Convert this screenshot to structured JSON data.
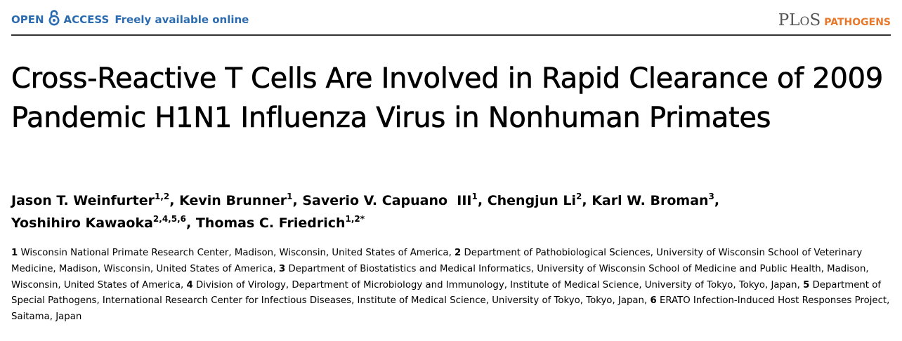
{
  "header": {
    "open": "OPEN",
    "access": "ACCESS",
    "freely": "Freely available online",
    "journal_plos": "PLOS",
    "journal_name": "PATHOGENS",
    "accent": "#2b6cb0",
    "journal_color": "#e8792b"
  },
  "title": "Cross-Reactive T Cells Are Involved in Rapid Clearance of 2009 Pandemic H1N1 Influenza Virus in Nonhuman Primates",
  "authors": [
    {
      "name": "Jason T. Weinfurter",
      "sup": "1,2",
      "sep": ", "
    },
    {
      "name": "Kevin Brunner",
      "sup": "1",
      "sep": ", "
    },
    {
      "name": "Saverio V. Capuano  III",
      "sup": "1",
      "sep": ", "
    },
    {
      "name": "Chengjun Li",
      "sup": "2",
      "sep": ", "
    },
    {
      "name": "Karl W. Broman",
      "sup": "3",
      "sep": ", "
    },
    {
      "name": "Yoshihiro Kawaoka",
      "sup": "2,4,5,6",
      "sep": ", "
    },
    {
      "name": "Thomas C. Friedrich",
      "sup": "1,2*",
      "sep": ""
    }
  ],
  "affiliations": [
    {
      "num": "1",
      "text": "Wisconsin National Primate Research Center, Madison, Wisconsin, United States of America,"
    },
    {
      "num": "2",
      "text": "Department of Pathobiological Sciences, University of Wisconsin School of Veterinary Medicine, Madison, Wisconsin, United States of America,"
    },
    {
      "num": "3",
      "text": "Department of Biostatistics and Medical Informatics, University of Wisconsin School of Medicine and Public Health, Madison, Wisconsin, United States of America,"
    },
    {
      "num": "4",
      "text": "Division of Virology, Department of Microbiology and Immunology, Institute of Medical Science, University of Tokyo, Tokyo, Japan,"
    },
    {
      "num": "5",
      "text": "Department of Special Pathogens, International Research Center for Infectious Diseases, Institute of Medical Science, University of Tokyo, Tokyo, Japan,"
    },
    {
      "num": "6",
      "text": "ERATO Infection-Induced Host Responses Project, Saitama, Japan"
    }
  ]
}
